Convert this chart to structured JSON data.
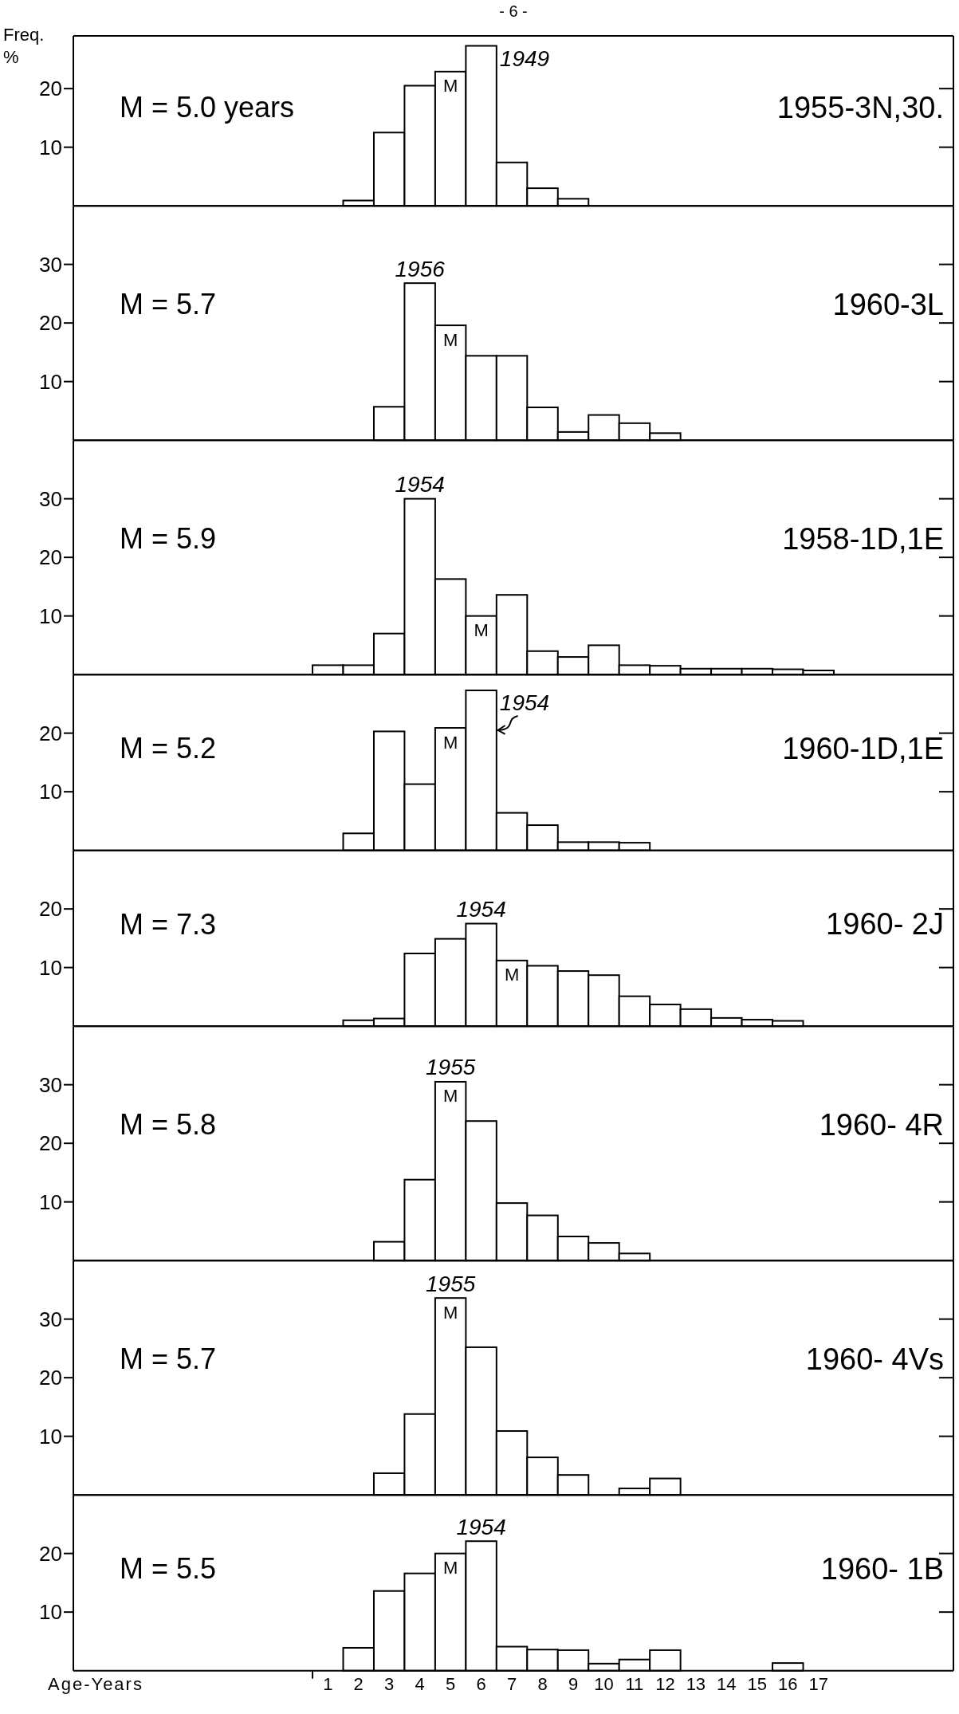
{
  "chart_data": [
    {
      "type": "histogram",
      "title": "1955-3N,30.",
      "ylabel": "Freq. %",
      "bins": [
        1.5,
        2.5,
        3.5,
        4.5,
        5.5,
        6.5,
        7.5,
        8.5,
        9.5
      ],
      "values": [
        0.9,
        12.5,
        20.5,
        22.9,
        27.3,
        7.4,
        3.0,
        1.2
      ],
      "color": "#ffffff",
      "xlim": [
        -7.3,
        21.4
      ],
      "ylim": [
        0,
        29
      ],
      "yticks": [
        10,
        20
      ],
      "tick_labels": "y",
      "annotations": [
        "- 6 -",
        "M = 5.0 years",
        {
          "text": "1949",
          "x": 6,
          "y": 27.3
        },
        {
          "text": "M",
          "x": 5,
          "y": 22.9
        }
      ]
    },
    {
      "type": "histogram",
      "title": "1960-3L",
      "bins": [
        2.5,
        3.5,
        4.5,
        5.5,
        6.5,
        7.5,
        8.5,
        9.5,
        10.5,
        11.5,
        12.5
      ],
      "values": [
        5.7,
        26.8,
        19.6,
        14.4,
        14.4,
        5.6,
        1.4,
        4.3,
        2.9,
        1.2
      ],
      "color": "#ffffff",
      "xlim": [
        -7.3,
        21.4
      ],
      "ylim": [
        0,
        40
      ],
      "yticks": [
        10,
        20,
        30
      ],
      "tick_labels": "y",
      "annotations": [
        "M = 5.7",
        {
          "text": "1956",
          "x": 4,
          "y": 26.8
        },
        {
          "text": "M",
          "x": 5,
          "y": 19.6
        }
      ]
    },
    {
      "type": "histogram",
      "title": "1958-1D,1E",
      "bins": [
        0.5,
        1.5,
        2.5,
        3.5,
        4.5,
        5.5,
        6.5,
        7.5,
        8.5,
        9.5,
        10.5,
        11.5,
        12.5,
        13.5,
        14.5,
        15.5,
        16.5,
        17.5
      ],
      "values": [
        1.6,
        1.6,
        7.0,
        30,
        16.3,
        10.0,
        13.6,
        4.0,
        3.0,
        5.0,
        1.6,
        1.5,
        1.0,
        1.0,
        1.0,
        0.9,
        0.7
      ],
      "color": "#ffffff",
      "xlim": [
        -7.3,
        21.4
      ],
      "ylim": [
        0,
        40
      ],
      "yticks": [
        10,
        20,
        30
      ],
      "tick_labels": "y",
      "annotations": [
        "M = 5.9",
        {
          "text": "1954",
          "x": 4,
          "y": 30
        },
        {
          "text": "M",
          "x": 6,
          "y": 10.0
        }
      ]
    },
    {
      "type": "histogram",
      "title": "1960-1D,1E",
      "bins": [
        1.5,
        2.5,
        3.5,
        4.5,
        5.5,
        6.5,
        7.5,
        8.5,
        9.5,
        10.5,
        11.5
      ],
      "values": [
        2.9,
        20.3,
        11.3,
        20.9,
        27.3,
        6.4,
        4.3,
        1.4,
        1.4,
        1.3
      ],
      "color": "#ffffff",
      "xlim": [
        -7.3,
        21.4
      ],
      "ylim": [
        0,
        30
      ],
      "yticks": [
        10,
        20
      ],
      "tick_labels": "y",
      "annotations": [
        "M = 5.2",
        {
          "text": "1954",
          "x": 6,
          "y": 27.3
        },
        {
          "text": "M",
          "x": 5,
          "y": 20.9
        }
      ]
    },
    {
      "type": "histogram",
      "title": "1960- 2J",
      "bins": [
        1.5,
        2.5,
        3.5,
        4.5,
        5.5,
        6.5,
        7.5,
        8.5,
        9.5,
        10.5,
        11.5,
        12.5,
        13.5,
        14.5,
        15.5,
        16.5
      ],
      "values": [
        1.0,
        1.3,
        12.4,
        14.9,
        17.5,
        11.2,
        10.3,
        9.4,
        8.7,
        5.1,
        3.7,
        2.9,
        1.4,
        1.1,
        0.9
      ],
      "color": "#ffffff",
      "xlim": [
        -7.3,
        21.4
      ],
      "ylim": [
        0,
        30
      ],
      "yticks": [
        10,
        20
      ],
      "tick_labels": "y",
      "annotations": [
        "M = 7.3",
        {
          "text": "1954",
          "x": 6,
          "y": 17.5
        },
        {
          "text": "M",
          "x": 7,
          "y": 11.2
        }
      ]
    },
    {
      "type": "histogram",
      "title": "1960- 4R",
      "bins": [
        2.5,
        3.5,
        4.5,
        5.5,
        6.5,
        7.5,
        8.5,
        9.5,
        10.5,
        11.5
      ],
      "values": [
        3.2,
        13.8,
        30.5,
        23.8,
        9.8,
        7.7,
        4.1,
        3.0,
        1.2
      ],
      "color": "#ffffff",
      "xlim": [
        -7.3,
        21.4
      ],
      "ylim": [
        0,
        40
      ],
      "yticks": [
        10,
        20,
        30
      ],
      "tick_labels": "y",
      "annotations": [
        "M = 5.8",
        {
          "text": "1955",
          "x": 5,
          "y": 30.5
        },
        {
          "text": "M",
          "x": 5,
          "y": 30.5
        }
      ]
    },
    {
      "type": "histogram",
      "title": "1960- 4Vs",
      "bins": [
        2.5,
        3.5,
        4.5,
        5.5,
        6.5,
        7.5,
        8.5,
        9.5,
        10.5,
        11.5,
        12.5
      ],
      "values": [
        3.7,
        13.8,
        33.6,
        25.2,
        10.9,
        6.4,
        3.4,
        0,
        1.1,
        2.8
      ],
      "color": "#ffffff",
      "xlim": [
        -7.3,
        21.4
      ],
      "ylim": [
        0,
        40
      ],
      "yticks": [
        10,
        20,
        30
      ],
      "tick_labels": "y",
      "annotations": [
        "M = 5.7",
        {
          "text": "1955",
          "x": 5,
          "y": 33.6
        },
        {
          "text": "M",
          "x": 5,
          "y": 33.6
        }
      ]
    },
    {
      "type": "histogram",
      "title": "1960- 1B",
      "xlabel": "Age-Years",
      "bins": [
        1.5,
        2.5,
        3.5,
        4.5,
        5.5,
        6.5,
        7.5,
        8.5,
        9.5,
        10.5,
        11.5,
        12.5,
        13.5,
        14.5,
        15.5,
        16.5
      ],
      "values": [
        3.9,
        13.6,
        16.6,
        20.0,
        22.1,
        4.1,
        3.6,
        3.5,
        1.2,
        1.9,
        3.5,
        0,
        0,
        0,
        1.3
      ],
      "color": "#ffffff",
      "xlim": [
        -7.3,
        21.4
      ],
      "ylim": [
        0,
        30
      ],
      "xticks": [
        {
          "value": 0.5,
          "label": null
        },
        1,
        2,
        3,
        4,
        5,
        6,
        7,
        8,
        9,
        10,
        11,
        12,
        13,
        14,
        15,
        16,
        17
      ],
      "yticks": [
        10,
        20
      ],
      "annotations": [
        "M = 5.5",
        {
          "text": "1954",
          "x": 6,
          "y": 22.1
        },
        {
          "text": "M",
          "x": 5,
          "y": 20.0
        }
      ]
    }
  ]
}
